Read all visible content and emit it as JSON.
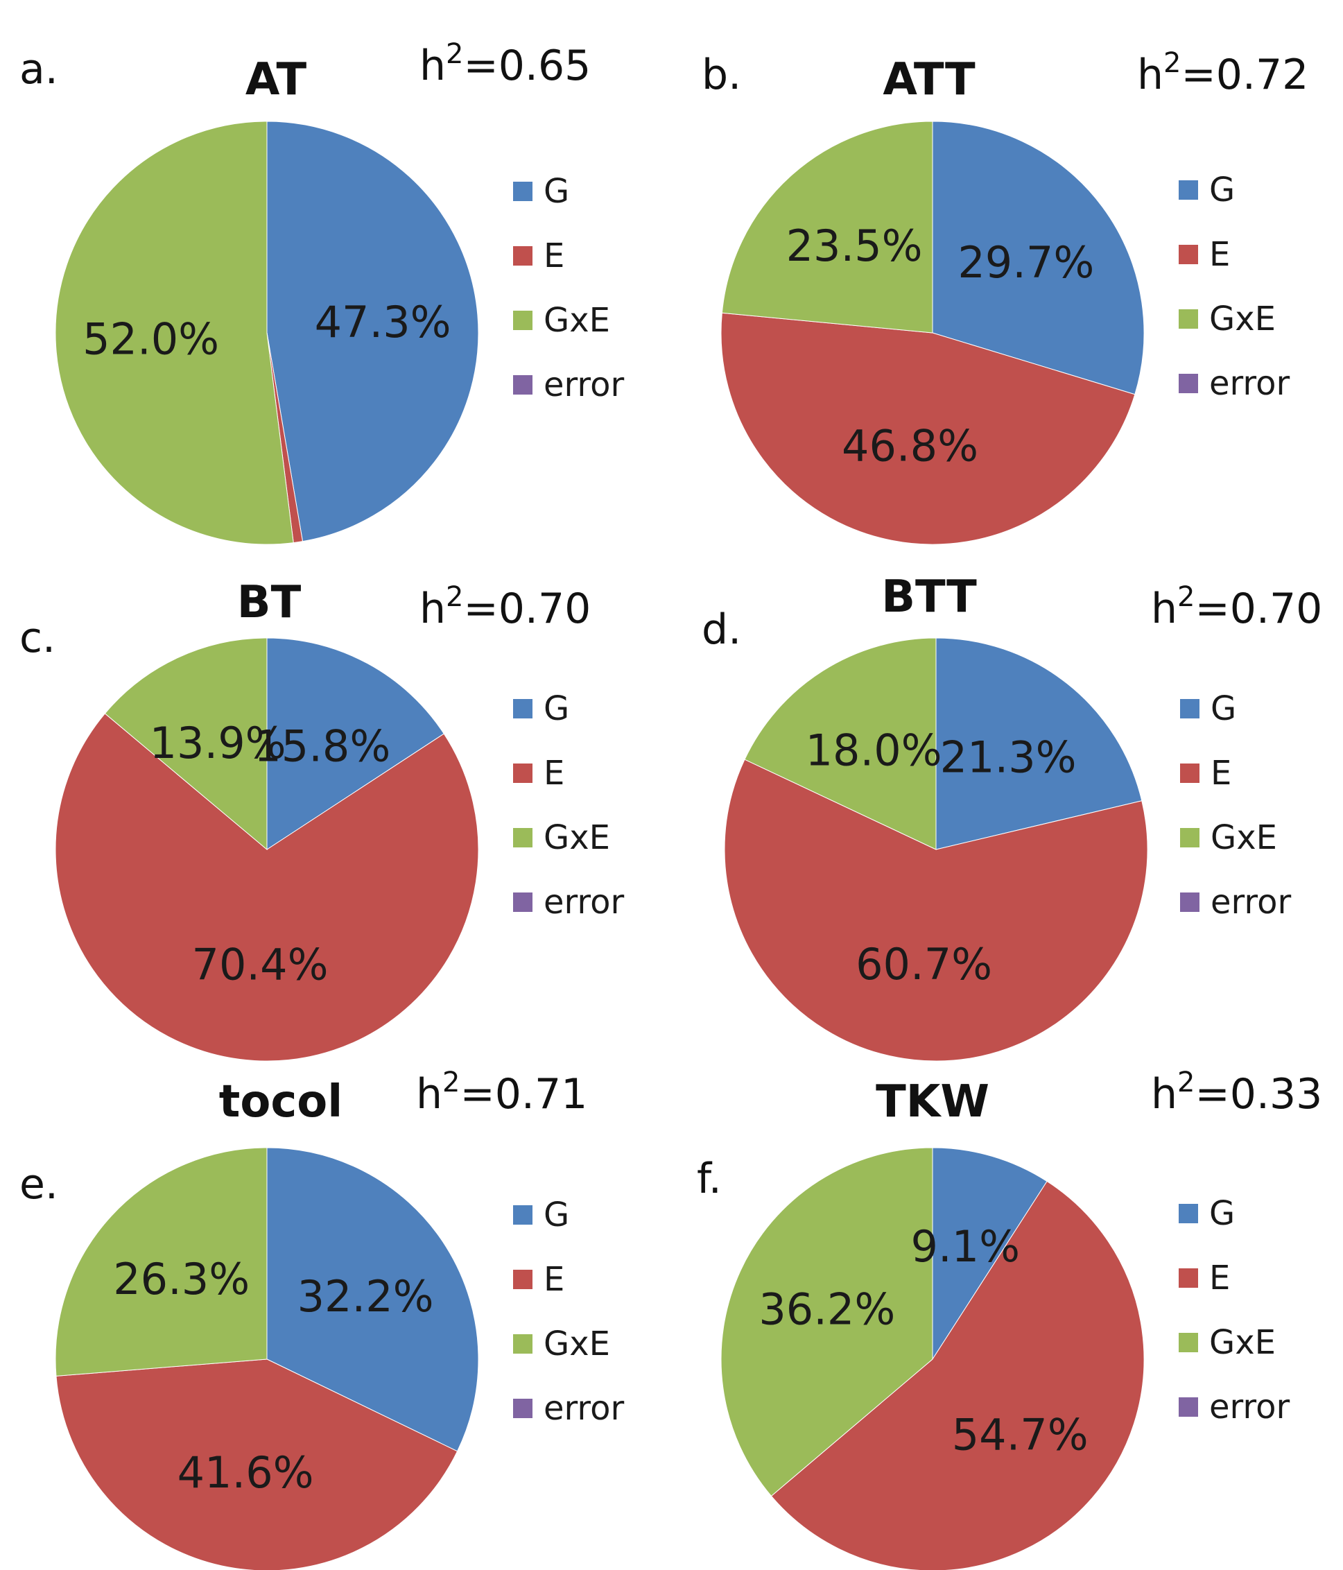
{
  "chart_data": [
    {
      "type": "pie",
      "panel": "a.",
      "title": "AT",
      "heritability": {
        "prefix": "h",
        "sup": "2",
        "value": "=0.65"
      },
      "categories": [
        "G",
        "E",
        "GxE",
        "error"
      ],
      "values": [
        47.3,
        0.7,
        52.0,
        0.0
      ],
      "labels": [
        "47.3%",
        "",
        "52.0%",
        ""
      ],
      "colors": [
        "#4F81BD",
        "#C0504D",
        "#9BBB59",
        "#8064A2"
      ],
      "legend_position": "right"
    },
    {
      "type": "pie",
      "panel": "b.",
      "title": "ATT",
      "heritability": {
        "prefix": "h",
        "sup": "2",
        "value": "=0.72"
      },
      "categories": [
        "G",
        "E",
        "GxE",
        "error"
      ],
      "values": [
        29.7,
        46.8,
        23.5,
        0.0
      ],
      "labels": [
        "29.7%",
        "46.8%",
        "23.5%",
        ""
      ],
      "colors": [
        "#4F81BD",
        "#C0504D",
        "#9BBB59",
        "#8064A2"
      ],
      "legend_position": "right"
    },
    {
      "type": "pie",
      "panel": "c.",
      "title": "BT",
      "heritability": {
        "prefix": "h",
        "sup": "2",
        "value": "=0.70"
      },
      "categories": [
        "G",
        "E",
        "GxE",
        "error"
      ],
      "values": [
        15.8,
        70.4,
        13.9,
        0.0
      ],
      "labels": [
        "15.8%",
        "70.4%",
        "13.9%",
        ""
      ],
      "colors": [
        "#4F81BD",
        "#C0504D",
        "#9BBB59",
        "#8064A2"
      ],
      "legend_position": "right"
    },
    {
      "type": "pie",
      "panel": "d.",
      "title": "BTT",
      "heritability": {
        "prefix": "h",
        "sup": "2",
        "value": "=0.70"
      },
      "categories": [
        "G",
        "E",
        "GxE",
        "error"
      ],
      "values": [
        21.3,
        60.7,
        18.0,
        0.0
      ],
      "labels": [
        "21.3%",
        "60.7%",
        "18.0%",
        ""
      ],
      "colors": [
        "#4F81BD",
        "#C0504D",
        "#9BBB59",
        "#8064A2"
      ],
      "legend_position": "right"
    },
    {
      "type": "pie",
      "panel": "e.",
      "title": "tocol",
      "heritability": {
        "prefix": "h",
        "sup": "2",
        "value": "=0.71"
      },
      "categories": [
        "G",
        "E",
        "GxE",
        "error"
      ],
      "values": [
        32.2,
        41.6,
        26.3,
        0.0
      ],
      "labels": [
        "32.2%",
        "41.6%",
        "26.3%",
        ""
      ],
      "colors": [
        "#4F81BD",
        "#C0504D",
        "#9BBB59",
        "#8064A2"
      ],
      "legend_position": "right"
    },
    {
      "type": "pie",
      "panel": "f.",
      "title": "TKW",
      "heritability": {
        "prefix": "h",
        "sup": "2",
        "value": "=0.33"
      },
      "categories": [
        "G",
        "E",
        "GxE",
        "error"
      ],
      "values": [
        9.1,
        54.7,
        36.2,
        0.0
      ],
      "labels": [
        "9.1%",
        "54.7%",
        "36.2%",
        ""
      ],
      "colors": [
        "#4F81BD",
        "#C0504D",
        "#9BBB59",
        "#8064A2"
      ],
      "legend_position": "right"
    }
  ]
}
